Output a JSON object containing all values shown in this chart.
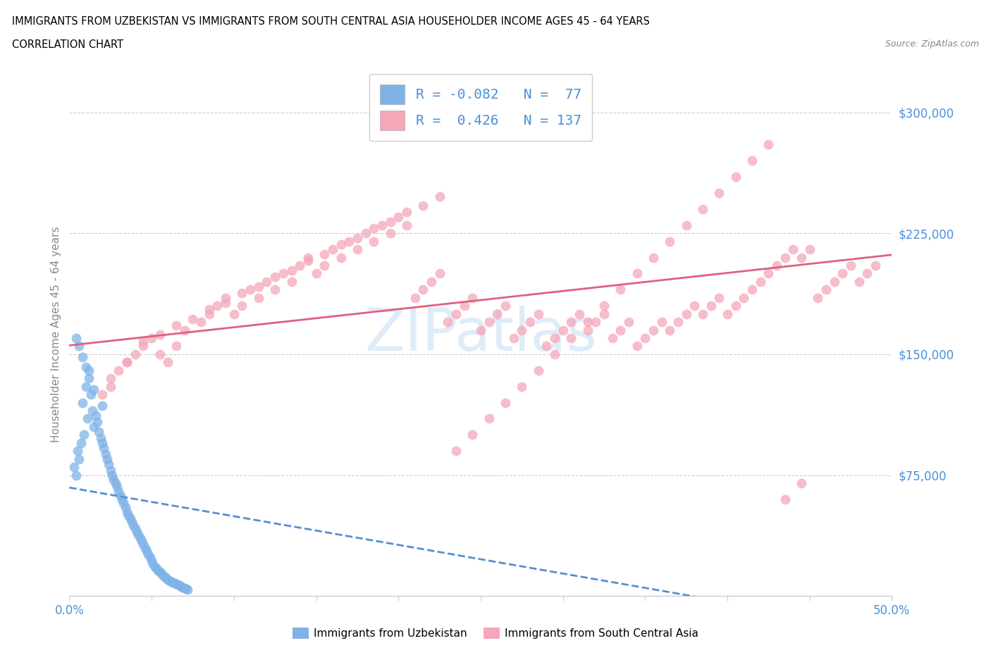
{
  "title_line1": "IMMIGRANTS FROM UZBEKISTAN VS IMMIGRANTS FROM SOUTH CENTRAL ASIA HOUSEHOLDER INCOME AGES 45 - 64 YEARS",
  "title_line2": "CORRELATION CHART",
  "source_text": "Source: ZipAtlas.com",
  "ylabel": "Householder Income Ages 45 - 64 years",
  "xlim": [
    0.0,
    0.5
  ],
  "ylim": [
    0,
    325000
  ],
  "xticks": [
    0.0,
    0.05,
    0.1,
    0.15,
    0.2,
    0.25,
    0.3,
    0.35,
    0.4,
    0.45,
    0.5
  ],
  "xticklabels": [
    "0.0%",
    "",
    "",
    "",
    "",
    "",
    "",
    "",
    "",
    "",
    "50.0%"
  ],
  "ytick_positions": [
    75000,
    150000,
    225000,
    300000
  ],
  "ytick_labels": [
    "$75,000",
    "$150,000",
    "$225,000",
    "$300,000"
  ],
  "hlines": [
    75000,
    150000,
    225000,
    300000
  ],
  "R_uzbekistan": -0.082,
  "N_uzbekistan": 77,
  "R_south_central": 0.426,
  "N_south_central": 137,
  "color_uzbekistan": "#7fb3e8",
  "color_south_central": "#f4a7b9",
  "color_uzbekistan_line": "#5590d0",
  "color_south_central_line": "#e06080",
  "watermark_color": "#c8dff5",
  "scatter_uzbekistan_x": [
    0.003,
    0.004,
    0.005,
    0.006,
    0.007,
    0.008,
    0.009,
    0.01,
    0.011,
    0.012,
    0.013,
    0.014,
    0.015,
    0.016,
    0.017,
    0.018,
    0.019,
    0.02,
    0.021,
    0.022,
    0.023,
    0.024,
    0.025,
    0.026,
    0.027,
    0.028,
    0.029,
    0.03,
    0.031,
    0.032,
    0.033,
    0.034,
    0.035,
    0.036,
    0.037,
    0.038,
    0.039,
    0.04,
    0.041,
    0.042,
    0.043,
    0.044,
    0.045,
    0.046,
    0.047,
    0.048,
    0.049,
    0.05,
    0.051,
    0.052,
    0.053,
    0.054,
    0.055,
    0.056,
    0.057,
    0.058,
    0.059,
    0.06,
    0.061,
    0.062,
    0.063,
    0.064,
    0.065,
    0.066,
    0.067,
    0.068,
    0.069,
    0.07,
    0.071,
    0.072,
    0.004,
    0.006,
    0.008,
    0.01,
    0.012,
    0.015,
    0.02
  ],
  "scatter_uzbekistan_y": [
    80000,
    75000,
    90000,
    85000,
    95000,
    120000,
    100000,
    130000,
    110000,
    140000,
    125000,
    115000,
    105000,
    112000,
    108000,
    102000,
    98000,
    95000,
    92000,
    88000,
    85000,
    82000,
    78000,
    75000,
    72000,
    70000,
    68000,
    65000,
    62000,
    60000,
    58000,
    55000,
    52000,
    50000,
    48000,
    46000,
    44000,
    42000,
    40000,
    38000,
    36000,
    34000,
    32000,
    30000,
    28000,
    26000,
    24000,
    22000,
    20000,
    18000,
    17000,
    16000,
    15000,
    14000,
    13000,
    12000,
    11000,
    10000,
    9500,
    9000,
    8500,
    8000,
    7500,
    7000,
    6500,
    6000,
    5500,
    5000,
    4500,
    4000,
    160000,
    155000,
    148000,
    142000,
    135000,
    128000,
    118000
  ],
  "scatter_sca_x": [
    0.02,
    0.025,
    0.03,
    0.035,
    0.04,
    0.045,
    0.05,
    0.055,
    0.06,
    0.065,
    0.07,
    0.08,
    0.085,
    0.09,
    0.095,
    0.1,
    0.105,
    0.11,
    0.115,
    0.12,
    0.125,
    0.13,
    0.135,
    0.14,
    0.145,
    0.15,
    0.155,
    0.16,
    0.165,
    0.17,
    0.175,
    0.18,
    0.185,
    0.19,
    0.195,
    0.2,
    0.205,
    0.21,
    0.215,
    0.22,
    0.225,
    0.23,
    0.235,
    0.24,
    0.245,
    0.25,
    0.255,
    0.26,
    0.265,
    0.27,
    0.275,
    0.28,
    0.285,
    0.29,
    0.295,
    0.3,
    0.305,
    0.31,
    0.315,
    0.32,
    0.325,
    0.33,
    0.335,
    0.34,
    0.345,
    0.35,
    0.355,
    0.36,
    0.365,
    0.37,
    0.375,
    0.38,
    0.385,
    0.39,
    0.395,
    0.4,
    0.405,
    0.41,
    0.415,
    0.42,
    0.425,
    0.43,
    0.435,
    0.44,
    0.445,
    0.45,
    0.455,
    0.46,
    0.465,
    0.47,
    0.475,
    0.48,
    0.485,
    0.49,
    0.025,
    0.035,
    0.045,
    0.055,
    0.065,
    0.075,
    0.085,
    0.095,
    0.105,
    0.115,
    0.125,
    0.135,
    0.145,
    0.155,
    0.165,
    0.175,
    0.185,
    0.195,
    0.205,
    0.215,
    0.225,
    0.235,
    0.245,
    0.255,
    0.265,
    0.275,
    0.285,
    0.295,
    0.305,
    0.315,
    0.325,
    0.335,
    0.345,
    0.355,
    0.365,
    0.375,
    0.385,
    0.395,
    0.405,
    0.415,
    0.425,
    0.435,
    0.445
  ],
  "scatter_sca_y": [
    125000,
    130000,
    140000,
    145000,
    150000,
    155000,
    160000,
    150000,
    145000,
    155000,
    165000,
    170000,
    175000,
    180000,
    185000,
    175000,
    180000,
    190000,
    185000,
    195000,
    190000,
    200000,
    195000,
    205000,
    210000,
    200000,
    205000,
    215000,
    210000,
    220000,
    215000,
    225000,
    220000,
    230000,
    225000,
    235000,
    230000,
    185000,
    190000,
    195000,
    200000,
    170000,
    175000,
    180000,
    185000,
    165000,
    170000,
    175000,
    180000,
    160000,
    165000,
    170000,
    175000,
    155000,
    160000,
    165000,
    170000,
    175000,
    165000,
    170000,
    175000,
    160000,
    165000,
    170000,
    155000,
    160000,
    165000,
    170000,
    165000,
    170000,
    175000,
    180000,
    175000,
    180000,
    185000,
    175000,
    180000,
    185000,
    190000,
    195000,
    200000,
    205000,
    210000,
    215000,
    210000,
    215000,
    185000,
    190000,
    195000,
    200000,
    205000,
    195000,
    200000,
    205000,
    135000,
    145000,
    158000,
    162000,
    168000,
    172000,
    178000,
    182000,
    188000,
    192000,
    198000,
    202000,
    208000,
    212000,
    218000,
    222000,
    228000,
    232000,
    238000,
    242000,
    248000,
    90000,
    100000,
    110000,
    120000,
    130000,
    140000,
    150000,
    160000,
    170000,
    180000,
    190000,
    200000,
    210000,
    220000,
    230000,
    240000,
    250000,
    260000,
    270000,
    280000,
    60000,
    70000
  ]
}
